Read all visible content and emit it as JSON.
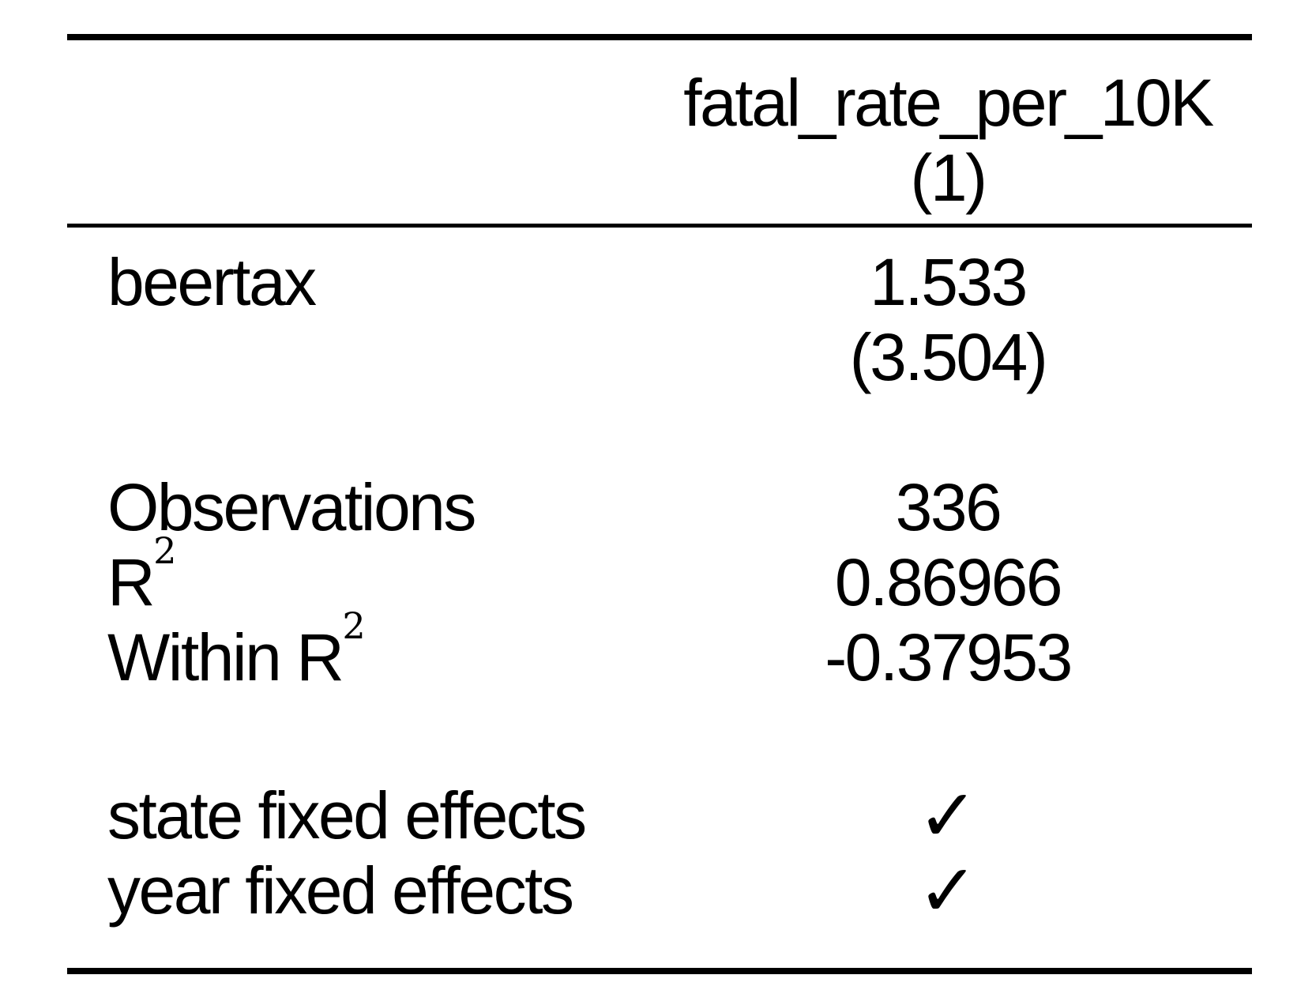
{
  "colors": {
    "text": "#000000",
    "background": "#ffffff",
    "rule": "#000000"
  },
  "table": {
    "header": {
      "dependent_variable": "fatal_rate_per_10K",
      "model_number": "(1)"
    },
    "coefficients": [
      {
        "label": "beertax",
        "estimate": "1.533",
        "std_error": "(3.504)"
      }
    ],
    "statistics": [
      {
        "label": "Observations",
        "sup": "",
        "value": "336"
      },
      {
        "label": "R",
        "sup": "2",
        "value": "0.86966"
      },
      {
        "label": "Within R",
        "sup": "2",
        "value": "-0.37953"
      }
    ],
    "fixed_effects": [
      {
        "label": "state fixed effects",
        "check": "✓"
      },
      {
        "label": "year fixed effects",
        "check": "✓"
      }
    ]
  }
}
